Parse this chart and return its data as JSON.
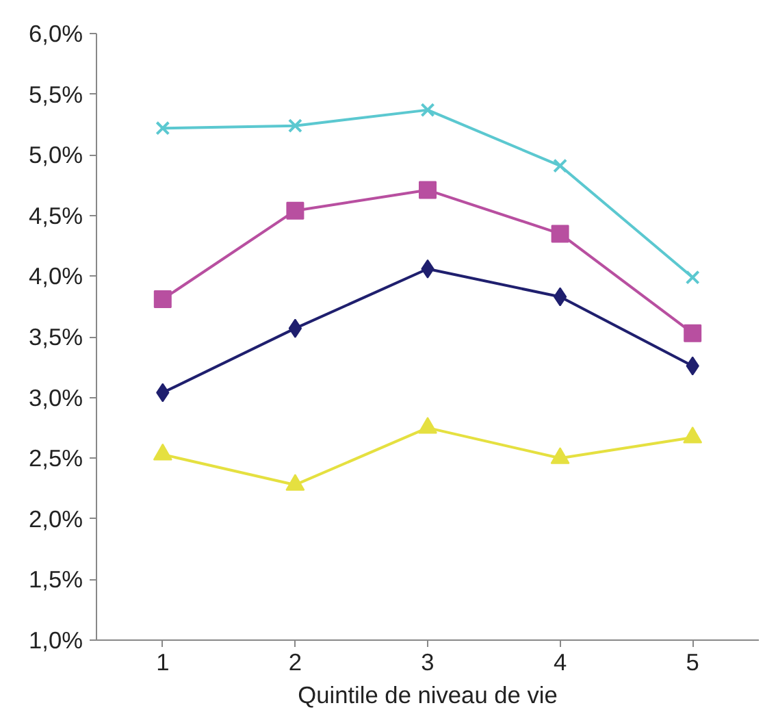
{
  "chart_data": {
    "type": "line",
    "xlabel": "Quintile de niveau de vie",
    "categories": [
      "1",
      "2",
      "3",
      "4",
      "5"
    ],
    "series": [
      {
        "color": "#5bc8d0",
        "marker": "cross",
        "values": [
          5.22,
          5.24,
          5.37,
          4.91,
          3.99
        ]
      },
      {
        "color": "#b84fa0",
        "marker": "square",
        "values": [
          3.81,
          4.54,
          4.71,
          4.35,
          3.53
        ]
      },
      {
        "color": "#1f1f6e",
        "marker": "diamond",
        "values": [
          3.04,
          3.57,
          4.06,
          3.83,
          3.26
        ]
      },
      {
        "color": "#e5e040",
        "marker": "triangle",
        "values": [
          2.53,
          2.28,
          2.75,
          2.5,
          2.67
        ]
      }
    ],
    "ylim": [
      1.0,
      6.0
    ],
    "yticks": [
      {
        "value": 1.0,
        "label": "1,0%"
      },
      {
        "value": 1.5,
        "label": "1,5%"
      },
      {
        "value": 2.0,
        "label": "2,0%"
      },
      {
        "value": 2.5,
        "label": "2,5%"
      },
      {
        "value": 3.0,
        "label": "3,0%"
      },
      {
        "value": 3.5,
        "label": "3,5%"
      },
      {
        "value": 4.0,
        "label": "4,0%"
      },
      {
        "value": 4.5,
        "label": "4,5%"
      },
      {
        "value": 5.0,
        "label": "5,0%"
      },
      {
        "value": 5.5,
        "label": "5,5%"
      },
      {
        "value": 6.0,
        "label": "6,0%"
      }
    ],
    "grid": false,
    "line_style": "solid"
  }
}
